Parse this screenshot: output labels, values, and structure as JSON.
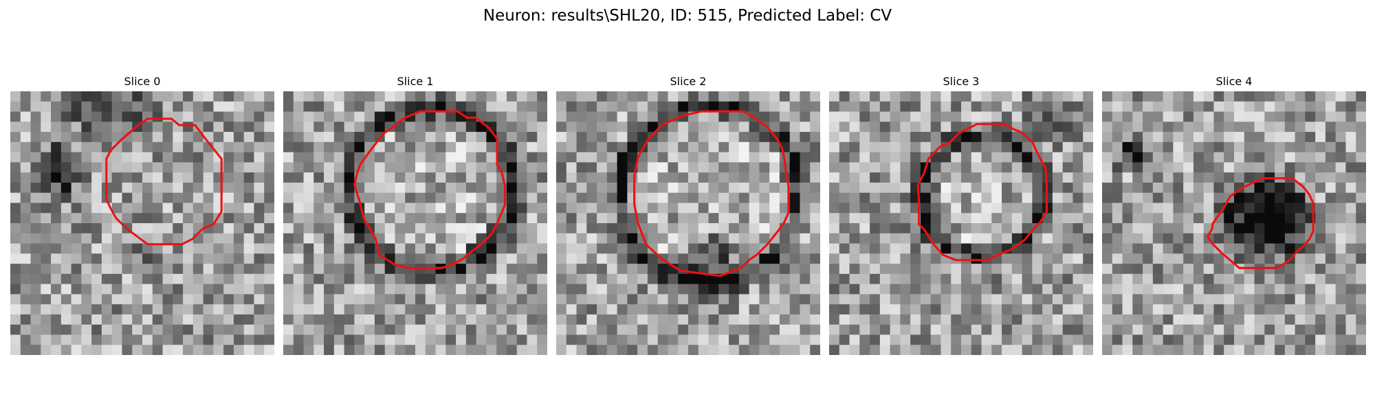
{
  "figure": {
    "title": "Neuron: results\\SHL20, ID: 515, Predicted Label: CV"
  },
  "panels": [
    {
      "title": "Slice 0",
      "contour_color": "#ee1111",
      "contour_desc": "irregular outline",
      "contour": [
        [
          260,
          52
        ],
        [
          305,
          52
        ],
        [
          320,
          64
        ],
        [
          350,
          64
        ],
        [
          368,
          88
        ],
        [
          400,
          128
        ],
        [
          400,
          228
        ],
        [
          385,
          252
        ],
        [
          365,
          260
        ],
        [
          345,
          280
        ],
        [
          325,
          290
        ],
        [
          260,
          290
        ],
        [
          240,
          275
        ],
        [
          220,
          260
        ],
        [
          200,
          240
        ],
        [
          190,
          222
        ],
        [
          182,
          205
        ],
        [
          182,
          128
        ],
        [
          190,
          112
        ],
        [
          210,
          92
        ],
        [
          240,
          66
        ]
      ],
      "dark_regions": [
        {
          "cx": 90,
          "cy": 150,
          "r": 60,
          "k": 0.75
        },
        {
          "cx": 260,
          "cy": 300,
          "r": 40,
          "k": 0.35
        },
        {
          "cx": 180,
          "cy": 20,
          "r": 140,
          "k": 0.3
        }
      ]
    },
    {
      "title": "Slice 1",
      "contour_color": "#ee1111",
      "contour_desc": "round outline",
      "contour": [
        [
          260,
          38
        ],
        [
          330,
          38
        ],
        [
          348,
          50
        ],
        [
          365,
          50
        ],
        [
          390,
          70
        ],
        [
          405,
          90
        ],
        [
          405,
          140
        ],
        [
          413,
          150
        ],
        [
          420,
          180
        ],
        [
          420,
          215
        ],
        [
          413,
          232
        ],
        [
          405,
          250
        ],
        [
          395,
          270
        ],
        [
          375,
          290
        ],
        [
          355,
          305
        ],
        [
          340,
          318
        ],
        [
          320,
          328
        ],
        [
          300,
          335
        ],
        [
          235,
          335
        ],
        [
          210,
          328
        ],
        [
          182,
          310
        ],
        [
          175,
          280
        ],
        [
          165,
          262
        ],
        [
          152,
          240
        ],
        [
          145,
          210
        ],
        [
          135,
          178
        ],
        [
          140,
          155
        ],
        [
          145,
          140
        ],
        [
          165,
          112
        ],
        [
          190,
          80
        ],
        [
          205,
          70
        ],
        [
          230,
          50
        ]
      ],
      "dark_regions": [
        {
          "cx": 280,
          "cy": 185,
          "r": 190,
          "ring": true,
          "ringR": 155,
          "k": 0.6
        }
      ]
    },
    {
      "title": "Slice 2",
      "contour_color": "#ee1111",
      "contour_desc": "round outline",
      "contour": [
        [
          275,
          38
        ],
        [
          355,
          38
        ],
        [
          375,
          50
        ],
        [
          400,
          68
        ],
        [
          418,
          90
        ],
        [
          428,
          108
        ],
        [
          432,
          128
        ],
        [
          435,
          150
        ],
        [
          440,
          180
        ],
        [
          440,
          230
        ],
        [
          432,
          248
        ],
        [
          420,
          265
        ],
        [
          400,
          290
        ],
        [
          380,
          310
        ],
        [
          365,
          320
        ],
        [
          350,
          335
        ],
        [
          310,
          350
        ],
        [
          235,
          340
        ],
        [
          200,
          318
        ],
        [
          170,
          290
        ],
        [
          155,
          250
        ],
        [
          148,
          215
        ],
        [
          148,
          160
        ],
        [
          155,
          125
        ],
        [
          175,
          90
        ],
        [
          200,
          64
        ],
        [
          240,
          46
        ]
      ],
      "dark_regions": [
        {
          "cx": 290,
          "cy": 195,
          "r": 210,
          "ring": true,
          "ringR": 170,
          "k": 0.55
        },
        {
          "cx": 290,
          "cy": 330,
          "r": 80,
          "k": 0.45
        }
      ]
    },
    {
      "title": "Slice 3",
      "contour_color": "#ee1111",
      "contour_desc": "round outline",
      "contour": [
        [
          280,
          62
        ],
        [
          330,
          62
        ],
        [
          350,
          72
        ],
        [
          365,
          78
        ],
        [
          385,
          96
        ],
        [
          392,
          112
        ],
        [
          400,
          128
        ],
        [
          410,
          145
        ],
        [
          412,
          175
        ],
        [
          412,
          228
        ],
        [
          400,
          248
        ],
        [
          388,
          260
        ],
        [
          370,
          282
        ],
        [
          345,
          300
        ],
        [
          320,
          310
        ],
        [
          300,
          320
        ],
        [
          240,
          320
        ],
        [
          215,
          310
        ],
        [
          198,
          290
        ],
        [
          180,
          262
        ],
        [
          170,
          252
        ],
        [
          170,
          205
        ],
        [
          168,
          178
        ],
        [
          180,
          155
        ],
        [
          188,
          128
        ],
        [
          210,
          105
        ],
        [
          230,
          96
        ],
        [
          245,
          80
        ]
      ],
      "dark_regions": [
        {
          "cx": 290,
          "cy": 200,
          "r": 150,
          "ring": true,
          "ringR": 115,
          "k": 0.55
        },
        {
          "cx": 420,
          "cy": 40,
          "r": 70,
          "k": 0.35
        }
      ]
    },
    {
      "title": "Slice 4",
      "contour_color": "#ee1111",
      "contour_desc": "irregular outline",
      "contour": [
        [
          305,
          165
        ],
        [
          360,
          165
        ],
        [
          380,
          180
        ],
        [
          392,
          195
        ],
        [
          400,
          212
        ],
        [
          400,
          265
        ],
        [
          393,
          280
        ],
        [
          383,
          292
        ],
        [
          368,
          305
        ],
        [
          355,
          320
        ],
        [
          340,
          330
        ],
        [
          330,
          335
        ],
        [
          260,
          335
        ],
        [
          240,
          318
        ],
        [
          225,
          305
        ],
        [
          210,
          290
        ],
        [
          200,
          275
        ],
        [
          208,
          262
        ],
        [
          210,
          250
        ],
        [
          230,
          222
        ],
        [
          242,
          200
        ],
        [
          262,
          185
        ],
        [
          282,
          175
        ]
      ],
      "dark_regions": [
        {
          "cx": 310,
          "cy": 240,
          "r": 110,
          "k": 0.9
        },
        {
          "cx": 60,
          "cy": 120,
          "r": 45,
          "k": 0.6
        }
      ]
    }
  ]
}
